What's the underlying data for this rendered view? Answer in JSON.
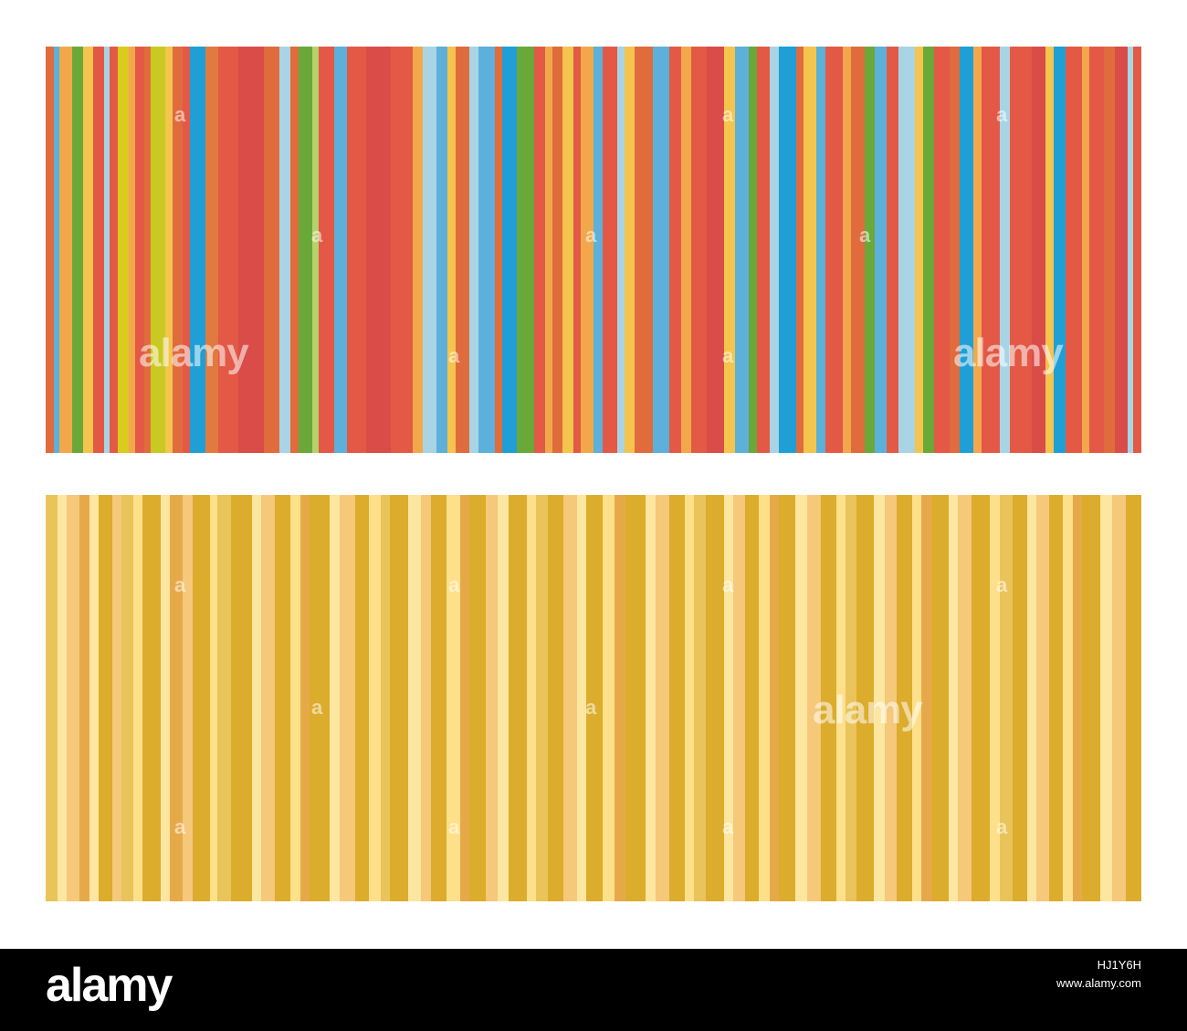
{
  "panels": {
    "top": {
      "stripes": [
        [
          "#e06b3d",
          5
        ],
        [
          "#5cb0d9",
          4
        ],
        [
          "#f2a84a",
          8
        ],
        [
          "#6aa83a",
          7
        ],
        [
          "#f4c44d",
          6
        ],
        [
          "#e35945",
          7
        ],
        [
          "#a8d4e6",
          4
        ],
        [
          "#e35945",
          5
        ],
        [
          "#d9cc1f",
          7
        ],
        [
          "#f2a84a",
          4
        ],
        [
          "#e35945",
          6
        ],
        [
          "#e06b3d",
          4
        ],
        [
          "#c9c922",
          9
        ],
        [
          "#f4c44d",
          5
        ],
        [
          "#e06b3d",
          6
        ],
        [
          "#e35945",
          5
        ],
        [
          "#1f9fd6",
          10
        ],
        [
          "#e07a40",
          8
        ],
        [
          "#e35945",
          13
        ],
        [
          "#d94c48",
          16
        ],
        [
          "#e06b3d",
          10
        ],
        [
          "#a8d4e6",
          7
        ],
        [
          "#e06b3d",
          5
        ],
        [
          "#6aa83a",
          9
        ],
        [
          "#b6d26b",
          4
        ],
        [
          "#e35945",
          10
        ],
        [
          "#5cb0d9",
          8
        ],
        [
          "#e35945",
          12
        ],
        [
          "#d94c48",
          16
        ],
        [
          "#e35945",
          14
        ],
        [
          "#f2a84a",
          6
        ],
        [
          "#a8d4e6",
          9
        ],
        [
          "#5cb0d9",
          7
        ],
        [
          "#f4c44d",
          5
        ],
        [
          "#e06b3d",
          9
        ],
        [
          "#a8d4e6",
          6
        ],
        [
          "#5cb0d9",
          10
        ],
        [
          "#e06b3d",
          5
        ],
        [
          "#1f9fd6",
          9
        ],
        [
          "#6aa83a",
          11
        ],
        [
          "#e35945",
          7
        ],
        [
          "#f2a84a",
          5
        ],
        [
          "#e06b3d",
          6
        ],
        [
          "#f4c44d",
          7
        ],
        [
          "#e35945",
          5
        ],
        [
          "#f2a84a",
          8
        ],
        [
          "#5cb0d9",
          6
        ],
        [
          "#e35945",
          9
        ],
        [
          "#a8d4e6",
          5
        ],
        [
          "#f4c44d",
          6
        ],
        [
          "#e06b3d",
          12
        ],
        [
          "#5cb0d9",
          10
        ],
        [
          "#e35945",
          8
        ],
        [
          "#f2a84a",
          6
        ],
        [
          "#e35945",
          10
        ],
        [
          "#d94c48",
          11
        ],
        [
          "#f4c44d",
          7
        ],
        [
          "#5cb0d9",
          9
        ],
        [
          "#6aa83a",
          5
        ],
        [
          "#e35945",
          8
        ],
        [
          "#a8d4e6",
          6
        ],
        [
          "#1f9fd6",
          11
        ],
        [
          "#e06b3d",
          5
        ],
        [
          "#f4c44d",
          8
        ],
        [
          "#5cb0d9",
          6
        ],
        [
          "#e35945",
          11
        ],
        [
          "#f2a84a",
          5
        ],
        [
          "#e06b3d",
          9
        ],
        [
          "#6aa83a",
          6
        ],
        [
          "#5cb0d9",
          8
        ],
        [
          "#e35945",
          7
        ],
        [
          "#a8d4e6",
          11
        ],
        [
          "#f4c44d",
          5
        ],
        [
          "#6aa83a",
          7
        ],
        [
          "#e35945",
          10
        ],
        [
          "#e06b3d",
          6
        ],
        [
          "#1f9fd6",
          9
        ],
        [
          "#f2a84a",
          5
        ],
        [
          "#e35945",
          12
        ],
        [
          "#a8d4e6",
          6
        ],
        [
          "#e35945",
          14
        ],
        [
          "#d94c48",
          9
        ],
        [
          "#f4c44d",
          5
        ],
        [
          "#1f9fd6",
          8
        ],
        [
          "#e35945",
          10
        ],
        [
          "#f2a84a",
          5
        ],
        [
          "#e35945",
          9
        ],
        [
          "#e06b3d",
          7
        ],
        [
          "#d94c48",
          8
        ],
        [
          "#a8d4e6",
          4
        ],
        [
          "#e35945",
          5
        ]
      ]
    },
    "bottom": {
      "stripes": [
        [
          "#e8c45a",
          8
        ],
        [
          "#fde6a0",
          6
        ],
        [
          "#f5c87a",
          8
        ],
        [
          "#e6a94a",
          7
        ],
        [
          "#fde6a0",
          6
        ],
        [
          "#dcac2c",
          9
        ],
        [
          "#f5c87a",
          6
        ],
        [
          "#e8c45a",
          8
        ],
        [
          "#ffe08a",
          6
        ],
        [
          "#dcac2c",
          12
        ],
        [
          "#fde6a0",
          6
        ],
        [
          "#e6a94a",
          8
        ],
        [
          "#f5c87a",
          7
        ],
        [
          "#dcac2c",
          11
        ],
        [
          "#ffe08a",
          5
        ],
        [
          "#e8c45a",
          9
        ],
        [
          "#dcac2c",
          14
        ],
        [
          "#fde6a0",
          6
        ],
        [
          "#f5c87a",
          9
        ],
        [
          "#dcac2c",
          10
        ],
        [
          "#ffe08a",
          7
        ],
        [
          "#e6a94a",
          6
        ],
        [
          "#dcac2c",
          13
        ],
        [
          "#fde6a0",
          7
        ],
        [
          "#f5c87a",
          10
        ],
        [
          "#dcac2c",
          9
        ],
        [
          "#ffe08a",
          8
        ],
        [
          "#e8c45a",
          6
        ],
        [
          "#dcac2c",
          12
        ],
        [
          "#fde6a0",
          8
        ],
        [
          "#f5c87a",
          7
        ],
        [
          "#dcac2c",
          10
        ],
        [
          "#ffe08a",
          9
        ],
        [
          "#e6a94a",
          6
        ],
        [
          "#dcac2c",
          11
        ],
        [
          "#f5c87a",
          8
        ],
        [
          "#fde6a0",
          7
        ],
        [
          "#dcac2c",
          12
        ],
        [
          "#ffe08a",
          6
        ],
        [
          "#e8c45a",
          8
        ],
        [
          "#dcac2c",
          10
        ],
        [
          "#f5c87a",
          9
        ],
        [
          "#fde6a0",
          6
        ],
        [
          "#dcac2c",
          11
        ],
        [
          "#ffe08a",
          8
        ],
        [
          "#e6a94a",
          7
        ],
        [
          "#dcac2c",
          13
        ],
        [
          "#fde6a0",
          7
        ],
        [
          "#f5c87a",
          9
        ],
        [
          "#dcac2c",
          10
        ],
        [
          "#ffe08a",
          6
        ],
        [
          "#e8c45a",
          8
        ],
        [
          "#dcac2c",
          12
        ],
        [
          "#fde6a0",
          6
        ],
        [
          "#f5c87a",
          8
        ],
        [
          "#dcac2c",
          9
        ],
        [
          "#ffe08a",
          7
        ],
        [
          "#e6a94a",
          6
        ],
        [
          "#dcac2c",
          11
        ],
        [
          "#fde6a0",
          8
        ],
        [
          "#f5c87a",
          9
        ],
        [
          "#dcac2c",
          10
        ],
        [
          "#ffe08a",
          6
        ],
        [
          "#e8c45a",
          7
        ],
        [
          "#dcac2c",
          12
        ],
        [
          "#fde6a0",
          7
        ],
        [
          "#f5c87a",
          8
        ],
        [
          "#dcac2c",
          10
        ],
        [
          "#ffe08a",
          6
        ],
        [
          "#e6a94a",
          7
        ],
        [
          "#dcac2c",
          11
        ],
        [
          "#fde6a0",
          6
        ],
        [
          "#f5c87a",
          9
        ],
        [
          "#dcac2c",
          12
        ],
        [
          "#ffe08a",
          7
        ],
        [
          "#e8c45a",
          8
        ],
        [
          "#dcac2c",
          10
        ],
        [
          "#fde6a0",
          6
        ],
        [
          "#f5c87a",
          8
        ],
        [
          "#dcac2c",
          9
        ],
        [
          "#ffe08a",
          7
        ],
        [
          "#e6a94a",
          6
        ],
        [
          "#dcac2c",
          12
        ],
        [
          "#fde6a0",
          8
        ],
        [
          "#f5c87a",
          9
        ],
        [
          "#dcac2c",
          10
        ]
      ]
    }
  },
  "watermark": {
    "text": "alamy",
    "small": "a"
  },
  "footer": {
    "logo": "alamy",
    "image_id": "HJ1Y6H",
    "site": "www.alamy.com"
  },
  "colors": {
    "footer_bg": "#000000",
    "page_bg": "#ffffff"
  }
}
